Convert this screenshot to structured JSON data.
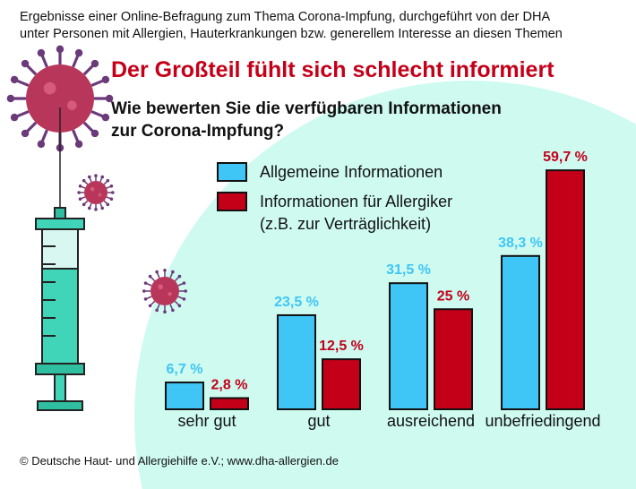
{
  "intro": [
    "Ergebnisse einer Online-Befragung zum Thema Corona-Impfung, durchgeführt von der DHA",
    "unter Personen mit Allergien, Hauterkrankungen bzw. generellem Interesse an diesen Themen"
  ],
  "headline": "Der Großteil fühlt sich schlecht informiert",
  "footer": "© Deutsche Haut- und Allergiehilfe e.V.; www.dha-allergien.de",
  "colors": {
    "blue": "#3fc6f6",
    "red": "#c40019",
    "background_circle": "#cefaf0",
    "virus": "#b8365a"
  },
  "chart_data": {
    "type": "bar",
    "title": "Wie bewerten Sie die verfügbaren Informationen zur Corona-Impfung?",
    "title_lines": [
      "Wie bewerten Sie die verfügbaren Informationen",
      "zur Corona-Impfung?"
    ],
    "categories": [
      "sehr gut",
      "gut",
      "ausreichend",
      "unbefriedingend"
    ],
    "series": [
      {
        "name": "Allgemeine Informationen",
        "values": [
          6.7,
          23.5,
          31.5,
          38.3
        ],
        "labels": [
          "6,7 %",
          "23,5 %",
          "31,5 %",
          "38,3 %"
        ],
        "color": "#3fc6f6"
      },
      {
        "name": "Informationen für Allergiker",
        "name_line2": "(z.B. zur Verträglichkeit)",
        "values": [
          2.8,
          12.5,
          25,
          59.7
        ],
        "labels": [
          "2,8 %",
          "12,5 %",
          "25 %",
          "59,7 %"
        ],
        "color": "#c40019"
      }
    ],
    "unit": "%",
    "grid": false,
    "axes_visible": false,
    "legend_position": "top"
  }
}
